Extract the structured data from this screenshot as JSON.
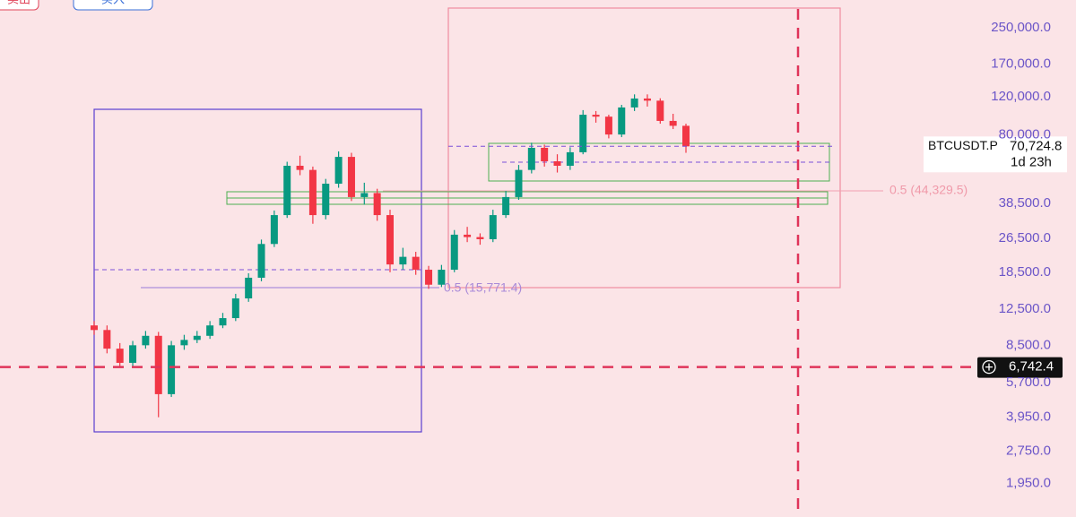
{
  "buttons": [
    "卖出",
    "买入"
  ],
  "chart_data": {
    "type": "candlestick",
    "log_scale": true,
    "ylim": [
      1365,
      336000
    ],
    "yticks": [
      {
        "value": 1950,
        "label": "1,950.0"
      },
      {
        "value": 2750,
        "label": "2,750.0"
      },
      {
        "value": 3950,
        "label": "3,950.0"
      },
      {
        "value": 5700,
        "label": "5,700.0"
      },
      {
        "value": 8500,
        "label": "8,500.0"
      },
      {
        "value": 12500,
        "label": "12,500.0"
      },
      {
        "value": 18500,
        "label": "18,500.0"
      },
      {
        "value": 26500,
        "label": "26,500.0"
      },
      {
        "value": 38500,
        "label": "38,500.0"
      },
      {
        "value": 80000,
        "label": "80,000.0"
      },
      {
        "value": 120000,
        "label": "120,000.0"
      },
      {
        "value": 170000,
        "label": "170,000.0"
      },
      {
        "value": 250000,
        "label": "250,000.0"
      }
    ],
    "up_color": "#089981",
    "down_color": "#f23645",
    "open": [
      10500,
      10000,
      8200,
      7050,
      8500,
      9400,
      5050,
      8500,
      9000,
      9400,
      10500,
      11350,
      14000,
      17450,
      25000,
      34000,
      57500,
      55000,
      34000,
      47500,
      63200,
      41200,
      43000,
      34000,
      20100,
      21800,
      19000,
      16200,
      19000,
      27600,
      26900,
      26300,
      34000,
      41200,
      55000,
      69600,
      60300,
      57500,
      66400,
      99000,
      97000,
      80200,
      107000,
      117700,
      115000,
      92700,
      88000
    ],
    "high": [
      11000,
      10500,
      8700,
      8900,
      9900,
      9800,
      8900,
      9500,
      9900,
      11000,
      12000,
      14700,
      18300,
      26200,
      35700,
      60000,
      64000,
      57000,
      50000,
      67000,
      66000,
      48000,
      45000,
      36000,
      24000,
      23000,
      19800,
      20000,
      29000,
      30000,
      28000,
      36000,
      44000,
      58000,
      73500,
      72000,
      65000,
      70000,
      104000,
      103000,
      99000,
      110000,
      123000,
      123000,
      118000,
      100000,
      90000
    ],
    "low": [
      9500,
      7800,
      6700,
      6800,
      8200,
      3950,
      4900,
      8100,
      8700,
      9100,
      10200,
      11000,
      13500,
      16800,
      24200,
      33000,
      52000,
      31000,
      32500,
      45500,
      39500,
      38000,
      32000,
      18500,
      19000,
      18000,
      15500,
      15800,
      18500,
      25500,
      24800,
      25500,
      33000,
      40000,
      53000,
      57000,
      53500,
      55000,
      65000,
      91000,
      77000,
      78000,
      103000,
      108000,
      90000,
      85000,
      66000
    ],
    "close": [
      10000,
      8200,
      7050,
      8500,
      9400,
      5050,
      8500,
      9000,
      9400,
      10500,
      11350,
      14000,
      17450,
      25000,
      34000,
      57500,
      55000,
      34000,
      47500,
      63200,
      41200,
      43000,
      34000,
      20100,
      21800,
      19000,
      16200,
      19000,
      27600,
      26900,
      26300,
      34000,
      41200,
      55000,
      69600,
      60300,
      57500,
      66400,
      99000,
      97000,
      80200,
      107000,
      117700,
      115000,
      92700,
      88000,
      70700
    ],
    "symbol": "BTCUSDT.P",
    "last_price": {
      "value": 70724.8,
      "label": "70,724.8"
    },
    "countdown": "1d 23h",
    "cursor_price": {
      "value": 6742.4,
      "label": "6,742.4"
    },
    "annotations": [
      "0.5 (44,329.5)",
      "0.5 (15,771.4)"
    ]
  }
}
